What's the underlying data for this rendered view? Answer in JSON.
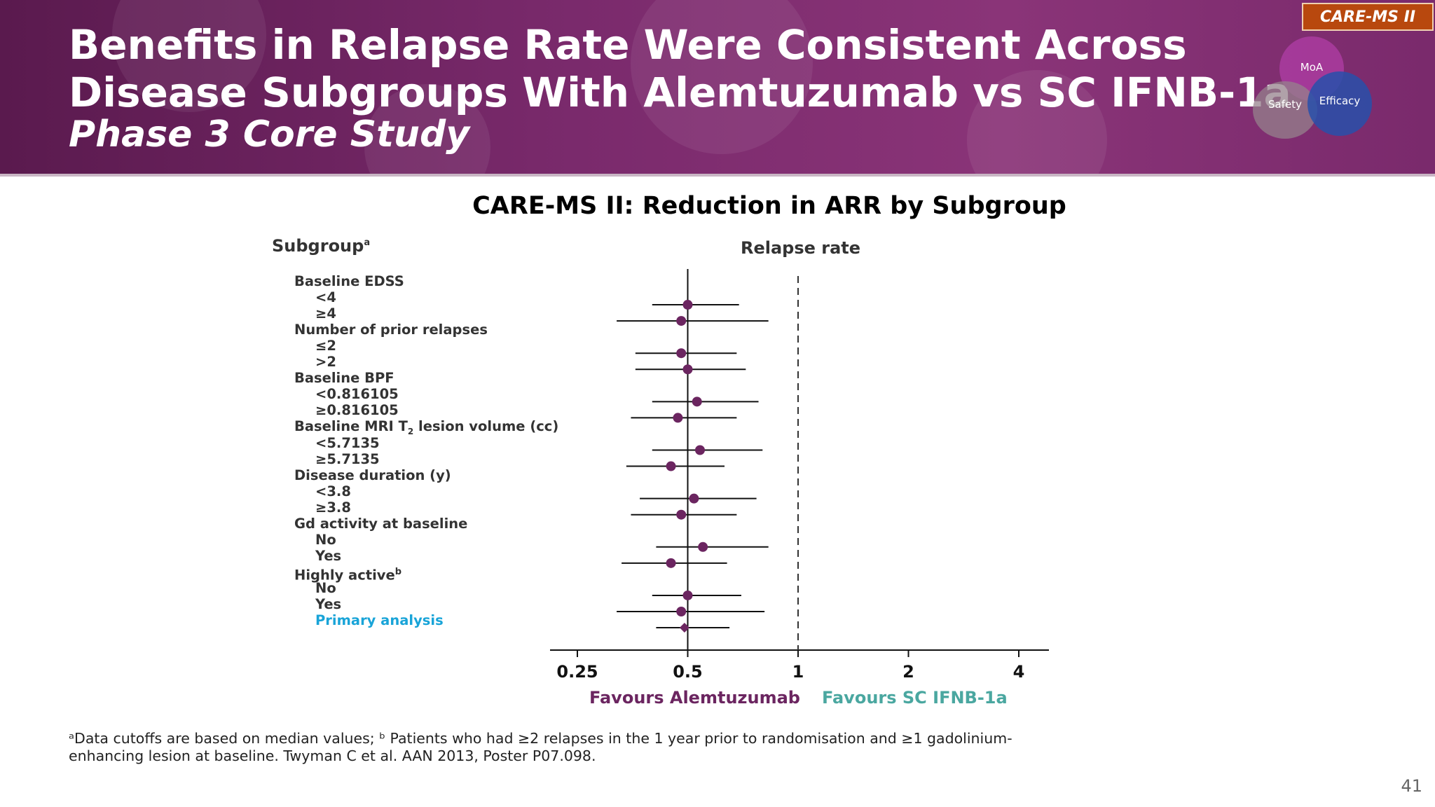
{
  "header": {
    "title_line1": "Benefits in Relapse Rate Were Consistent Across",
    "title_line2": "Disease Subgroups With Alemtuzumab vs SC IFNB-1a",
    "subtitle": "Phase 3 Core Study",
    "badge": "CARE-MS II",
    "circles": {
      "moa": "MoA",
      "safety": "Safety",
      "efficacy": "Efficacy"
    }
  },
  "chart_data": {
    "type": "scatter",
    "title": "CARE-MS II: Reduction in ARR by Subgroup",
    "column_header_left": "Subgroup",
    "column_header_left_sup": "a",
    "column_header_right": "Relapse rate",
    "x_scale": "log2",
    "xlim": [
      0.22,
      5.0
    ],
    "xticks": [
      0.25,
      0.5,
      1,
      2,
      4
    ],
    "xtick_labels": [
      "0.25",
      "0.5",
      "1",
      "2",
      "4"
    ],
    "reference_line": 1,
    "favours_left": "Favours Alemtuzumab",
    "favours_right": "Favours SC IFNB-1a",
    "rows": [
      {
        "label": "Baseline EDSS",
        "header": true
      },
      {
        "label": "<4",
        "est": 0.5,
        "lo": 0.4,
        "hi": 0.69
      },
      {
        "label": "≥4",
        "est": 0.48,
        "lo": 0.32,
        "hi": 0.83
      },
      {
        "label": "Number of prior relapses",
        "header": true
      },
      {
        "label": "≤2",
        "est": 0.48,
        "lo": 0.36,
        "hi": 0.68
      },
      {
        "label": ">2",
        "est": 0.5,
        "lo": 0.36,
        "hi": 0.72
      },
      {
        "label": "Baseline BPF",
        "header": true
      },
      {
        "label": "<0.816105",
        "est": 0.53,
        "lo": 0.4,
        "hi": 0.78
      },
      {
        "label": "≥0.816105",
        "est": 0.47,
        "lo": 0.35,
        "hi": 0.68
      },
      {
        "label": "Baseline MRI T",
        "sub": "2",
        "label_suffix": " lesion volume (cc)",
        "header": true
      },
      {
        "label": "<5.7135",
        "est": 0.54,
        "lo": 0.4,
        "hi": 0.8
      },
      {
        "label": "≥5.7135",
        "est": 0.45,
        "lo": 0.34,
        "hi": 0.63
      },
      {
        "label": "Disease duration (y)",
        "header": true
      },
      {
        "label": "<3.8",
        "est": 0.52,
        "lo": 0.37,
        "hi": 0.77
      },
      {
        "label": "≥3.8",
        "est": 0.48,
        "lo": 0.35,
        "hi": 0.68
      },
      {
        "label": "Gd activity at baseline",
        "header": true
      },
      {
        "label": "No",
        "est": 0.55,
        "lo": 0.41,
        "hi": 0.83
      },
      {
        "label": "Yes",
        "est": 0.45,
        "lo": 0.33,
        "hi": 0.64
      },
      {
        "label": "Highly active",
        "sup": "b",
        "header": true
      },
      {
        "label": "No",
        "est": 0.5,
        "lo": 0.4,
        "hi": 0.7
      },
      {
        "label": "Yes",
        "est": 0.48,
        "lo": 0.32,
        "hi": 0.81
      },
      {
        "label": "Primary analysis",
        "est": 0.49,
        "lo": 0.41,
        "hi": 0.65,
        "primary": true
      }
    ],
    "colors": {
      "point": "#6b2560",
      "line": "#111111",
      "primary_label": "#19a4d8"
    }
  },
  "footnote": {
    "line1": "ᵃData cutoffs are based on median values; ᵇ Patients who had ≥2 relapses in the 1 year prior to randomisation and ≥1 gadolinium-",
    "line2": "enhancing lesion at baseline. Twyman C et al. AAN 2013, Poster P07.098."
  },
  "page_number": "41"
}
